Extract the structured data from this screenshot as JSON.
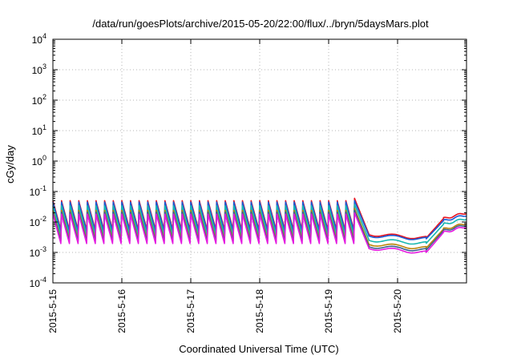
{
  "chart_data": {
    "type": "line",
    "title": "/data/run/goesPlots/archive/2015-05-20/22:00/flux/../bryn/5daysMars.plot",
    "xlabel": "Coordinated Universal Time (UTC)",
    "ylabel": "cGy/day",
    "yscale": "log",
    "ylim": [
      0.0001,
      10000
    ],
    "y_ticks": [
      {
        "base": "10",
        "exp": "-4"
      },
      {
        "base": "10",
        "exp": "-3"
      },
      {
        "base": "10",
        "exp": "-2"
      },
      {
        "base": "10",
        "exp": "-1"
      },
      {
        "base": "10",
        "exp": "0"
      },
      {
        "base": "10",
        "exp": "1"
      },
      {
        "base": "10",
        "exp": "2"
      },
      {
        "base": "10",
        "exp": "3"
      },
      {
        "base": "10",
        "exp": "4"
      }
    ],
    "x_range": [
      "2015-05-15",
      "2015-05-21"
    ],
    "x_ticks": [
      "2015-5-15",
      "2015-5-16",
      "2015-5-17",
      "2015-5-18",
      "2015-5-19",
      "2015-5-20"
    ],
    "grid": true,
    "legend": "none",
    "series": [
      {
        "color": "#e8121e",
        "values": {
          "baseline": 0.0045,
          "peak": 0.05,
          "drop_start": 0.06,
          "drop_end": 0.004,
          "quiet": 0.003,
          "recover": 0.02
        }
      },
      {
        "color": "#1a5bd6",
        "values": {
          "baseline": 0.004,
          "peak": 0.045,
          "drop_start": 0.05,
          "drop_end": 0.0036,
          "quiet": 0.0028,
          "recover": 0.017
        }
      },
      {
        "color": "#17b8b0",
        "values": {
          "baseline": 0.003,
          "peak": 0.034,
          "drop_start": 0.038,
          "drop_end": 0.0026,
          "quiet": 0.002,
          "recover": 0.013
        }
      },
      {
        "color": "#b8860b",
        "values": {
          "baseline": 0.0022,
          "peak": 0.024,
          "drop_start": 0.028,
          "drop_end": 0.0019,
          "quiet": 0.0014,
          "recover": 0.009
        }
      },
      {
        "color": "#3e5f8f",
        "values": {
          "baseline": 0.0019,
          "peak": 0.021,
          "drop_start": 0.024,
          "drop_end": 0.0016,
          "quiet": 0.0012,
          "recover": 0.008
        }
      },
      {
        "color": "#e51ae0",
        "values": {
          "baseline": 0.0016,
          "peak": 0.018,
          "drop_start": 0.02,
          "drop_end": 0.0014,
          "quiet": 0.001,
          "recover": 0.007
        }
      }
    ],
    "sawtooth_cycles_per_day": 8,
    "event": {
      "start": "2015-05-19T09:00",
      "decay_end": "2015-05-19T14:00",
      "quiet_end": "2015-05-20T10:00",
      "ramp_end": "2015-05-20T16:00"
    }
  }
}
